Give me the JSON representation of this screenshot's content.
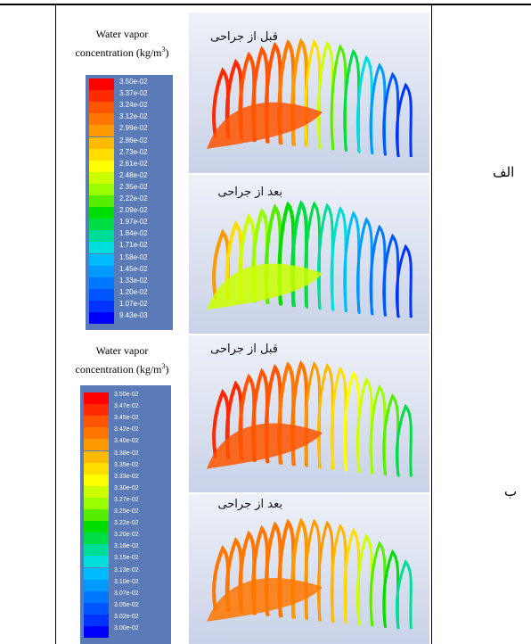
{
  "legend_title_line1": "Water vapor",
  "legend_title_line2": "concentration (kg/m",
  "legend_title_sup": "3",
  "legend_title_close": ")",
  "colors": [
    "#ff0000",
    "#ff2a00",
    "#ff5500",
    "#ff7700",
    "#ff9900",
    "#ffbb00",
    "#ffdd00",
    "#ffff00",
    "#ccff00",
    "#99ff00",
    "#55ee00",
    "#00dd00",
    "#00dd44",
    "#00dd99",
    "#00dddd",
    "#00bbff",
    "#0099ff",
    "#0077ff",
    "#0055ff",
    "#0033ff",
    "#0000ff"
  ],
  "rows": [
    {
      "row_label": "الف",
      "legend_ticks": [
        "3.50e-02",
        "3.37e-02",
        "3.24e-02",
        "3.12e-02",
        "2.99e-02",
        "2.86e-02",
        "2.73e-02",
        "2.61e-02",
        "2.48e-02",
        "2.35e-02",
        "2.22e-02",
        "2.09e-02",
        "1.97e-02",
        "1.84e-02",
        "1.71e-02",
        "1.58e-02",
        "1.45e-02",
        "1.33e-02",
        "1.20e-02",
        "1.07e-02",
        "9.43e-03"
      ],
      "before_caption": "قبل از جراحی",
      "after_caption": "بعد از جراحی",
      "before_mix": [
        0.95,
        0.95,
        0.92,
        0.9,
        0.88,
        0.85,
        0.8,
        0.72,
        0.62,
        0.5,
        0.38,
        0.28,
        0.18,
        0.1,
        0.06
      ],
      "after_mix": [
        0.82,
        0.7,
        0.6,
        0.55,
        0.5,
        0.46,
        0.42,
        0.38,
        0.36,
        0.32,
        0.26,
        0.2,
        0.14,
        0.08,
        0.05
      ]
    },
    {
      "row_label": "ب",
      "legend_ticks": [
        "3.50e-02",
        "3.47e-02",
        "3.45e-02",
        "3.42e-02",
        "3.40e-02",
        "3.38e-02",
        "3.35e-02",
        "3.33e-02",
        "3.30e-02",
        "3.27e-02",
        "3.25e-02",
        "3.22e-02",
        "3.20e-02",
        "3.18e-02",
        "3.15e-02",
        "3.13e-02",
        "3.10e-02",
        "3.07e-02",
        "3.05e-02",
        "3.02e-02",
        "3.00e-02"
      ],
      "before_caption": "قبل از جراحی",
      "after_caption": "بعد از جراحی",
      "before_mix": [
        0.95,
        0.94,
        0.92,
        0.9,
        0.88,
        0.86,
        0.83,
        0.8,
        0.76,
        0.72,
        0.66,
        0.6,
        0.54,
        0.48,
        0.42
      ],
      "after_mix": [
        0.86,
        0.85,
        0.84,
        0.84,
        0.83,
        0.83,
        0.82,
        0.8,
        0.78,
        0.74,
        0.68,
        0.6,
        0.52,
        0.44,
        0.36
      ]
    }
  ]
}
